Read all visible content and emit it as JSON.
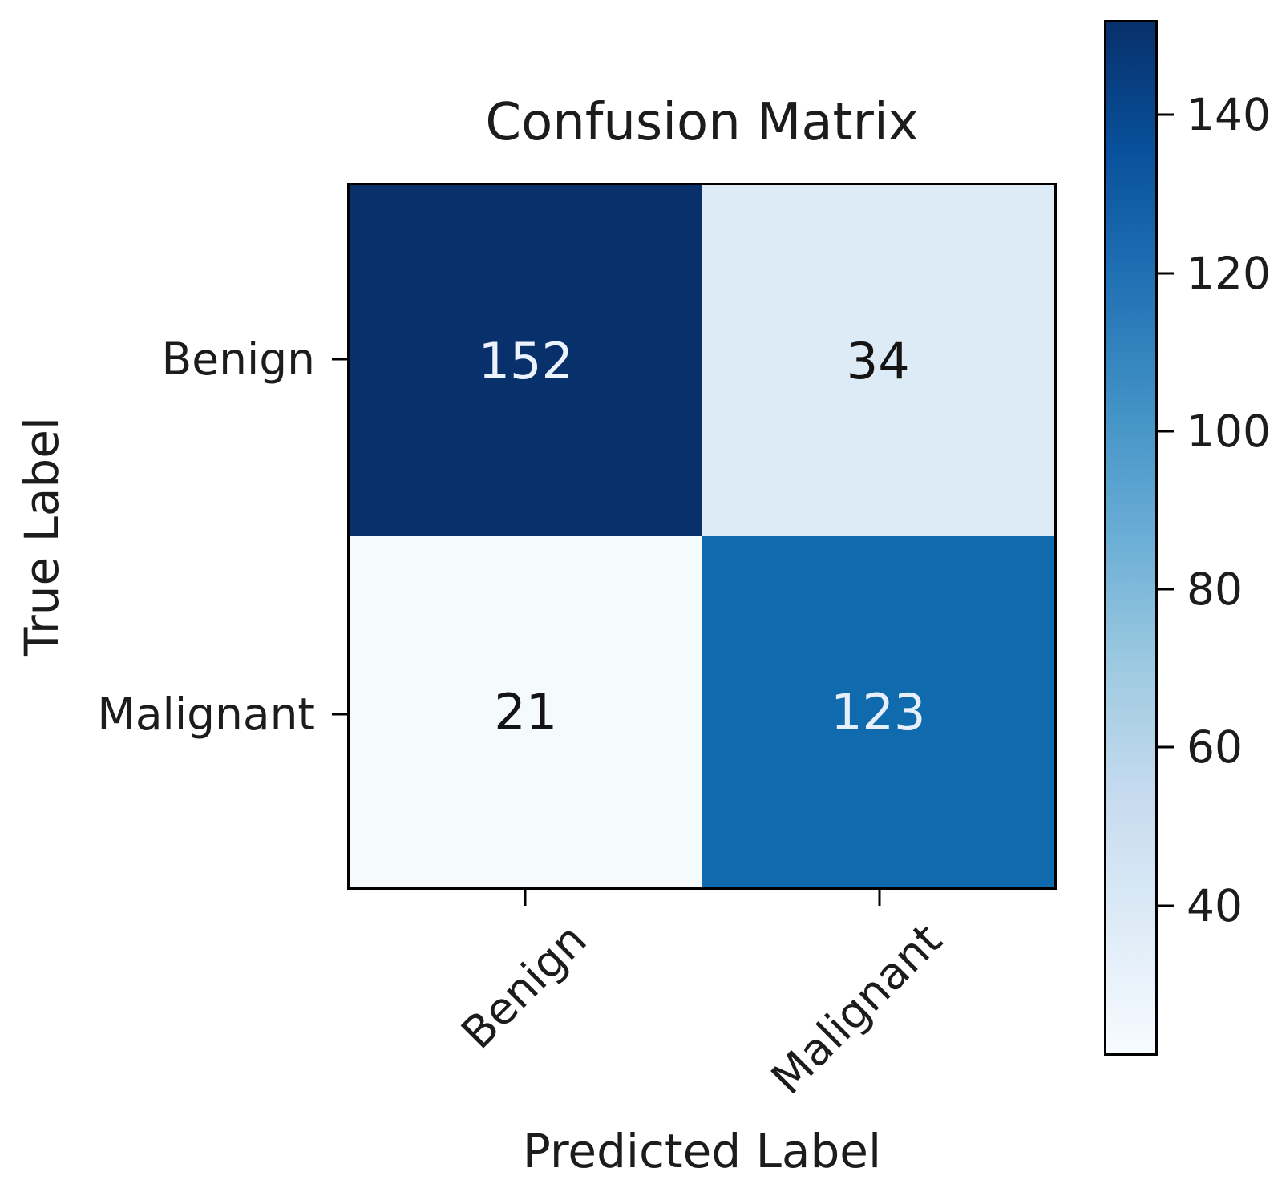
{
  "chart_data": {
    "type": "heatmap",
    "title": "Confusion Matrix",
    "xlabel": "Predicted Label",
    "ylabel": "True Label",
    "x_tick_labels": [
      "Benign",
      "Malignant"
    ],
    "y_tick_labels": [
      "Benign",
      "Malignant"
    ],
    "matrix": [
      [
        152,
        34
      ],
      [
        21,
        123
      ]
    ],
    "cells": [
      {
        "true": "Benign",
        "predicted": "Benign",
        "value": "152",
        "bg": "#08306b",
        "fg": "#edf3fc"
      },
      {
        "true": "Benign",
        "predicted": "Malignant",
        "value": "34",
        "bg": "#dcebf5",
        "fg": "#141414"
      },
      {
        "true": "Malignant",
        "predicted": "Benign",
        "value": "21",
        "bg": "#f5fafd",
        "fg": "#141414"
      },
      {
        "true": "Malignant",
        "predicted": "Malignant",
        "value": "123",
        "bg": "#0f6aae",
        "fg": "#e7f0fa"
      }
    ],
    "colormap": "Blues",
    "colorbar": {
      "vmin": 21,
      "vmax": 152,
      "ticks": [
        "140",
        "120",
        "100",
        "80",
        "60",
        "40"
      ],
      "gradient_bottom_to_top": [
        "#f7fbff",
        "#deebf7",
        "#c6dbef",
        "#9ecae1",
        "#6baed6",
        "#4292c6",
        "#2171b5",
        "#08519c",
        "#08306b"
      ]
    },
    "grid": false,
    "legend": false
  }
}
